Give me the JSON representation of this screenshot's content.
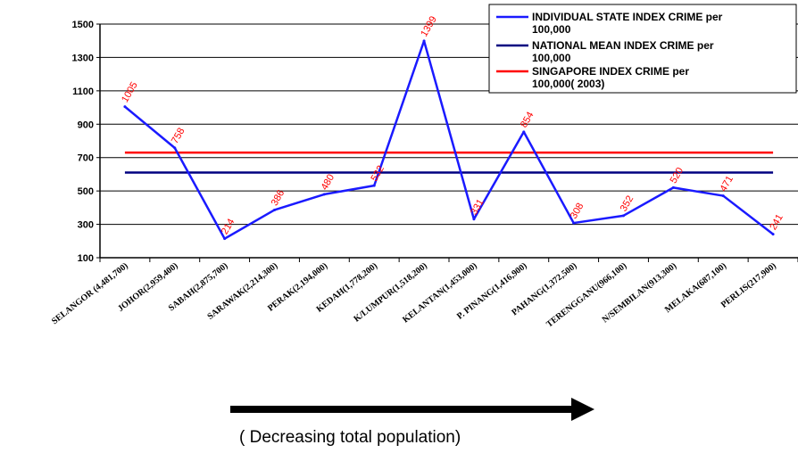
{
  "chart_data": {
    "type": "line",
    "categories": [
      "SELANGOR (4,481,700)",
      "JOHOR(2,959,400)",
      "SABAH(2,875,700)",
      "SARAWAK(2,214,300)",
      "PERAK(2,194,000)",
      "KEDAH(1,778,200)",
      "K/LUMPUR(1,518,200)",
      "KELANTAN(1,453,000)",
      "P. PINANG(1,416,900)",
      "PAHANG(1,372,500)",
      "TERENGGANU(966,100)",
      "N/SEMBILAN(913,300)",
      "MELAKA(687,100)",
      "PERLIS(217,900)"
    ],
    "series": [
      {
        "name": "INDIVIDUAL STATE INDEX CRIME per 100,000",
        "color": "#1a1aff",
        "values": [
          1005,
          758,
          214,
          386,
          480,
          532,
          1399,
          331,
          854,
          308,
          352,
          520,
          471,
          241
        ],
        "data_labels": [
          "1005",
          "758",
          "214",
          "386",
          "480",
          "532",
          "1399",
          "331",
          "854",
          "308",
          "352",
          "520",
          "471",
          "241"
        ]
      },
      {
        "name": "NATIONAL MEAN INDEX CRIME per 100,000",
        "color": "#000080",
        "values": [
          610,
          610,
          610,
          610,
          610,
          610,
          610,
          610,
          610,
          610,
          610,
          610,
          610,
          610
        ]
      },
      {
        "name": "SINGAPORE INDEX CRIME per 100,000( 2003)",
        "color": "#ff0000",
        "values": [
          730,
          730,
          730,
          730,
          730,
          730,
          730,
          730,
          730,
          730,
          730,
          730,
          730,
          730
        ]
      }
    ],
    "yticks": [
      "100",
      "300",
      "500",
      "700",
      "900",
      "1100",
      "1300",
      "1500"
    ],
    "ylim": [
      100,
      1500
    ],
    "grid": true,
    "legend_position": "top-right",
    "data_label_color": "#ff0000"
  },
  "legend": {
    "entries": [
      {
        "lines": [
          "INDIVIDUAL STATE INDEX CRIME per",
          "100,000"
        ],
        "color": "#1a1aff"
      },
      {
        "lines": [
          "NATIONAL MEAN INDEX CRIME per",
          "100,000"
        ],
        "color": "#000080"
      },
      {
        "lines": [
          "SINGAPORE INDEX CRIME per",
          "100,000( 2003)"
        ],
        "color": "#ff0000"
      }
    ]
  },
  "annotation": {
    "arrow_direction": "right",
    "arrow_color": "#000000",
    "text": "( Decreasing total population)"
  }
}
